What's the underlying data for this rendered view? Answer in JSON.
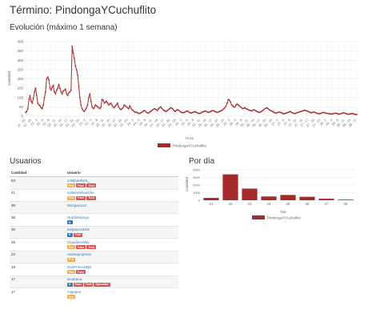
{
  "page": {
    "title": "Término: PindongaYCuchuflito",
    "evolution_title": "Evolución (máximo 1 semana)",
    "users_title": "Usuarios",
    "per_day_title": "Por día"
  },
  "colors": {
    "series": "#a52a2a",
    "badge_red": "#d9534f",
    "badge_orange": "#f0ad4e",
    "badge_blue": "#337ab7",
    "link": "#337ab7"
  },
  "users_table": {
    "headers": [
      "Cantidad",
      "Usuario"
    ],
    "rows": [
      {
        "count": "53",
        "user": "cristinorelyra_",
        "badges": [
          [
            "pro",
            "Pro"
          ],
          [
            "fake",
            "Fake"
          ],
          [
            "troll",
            "Troll"
          ]
        ]
      },
      {
        "count": "41",
        "user": "saltalorlehuelche",
        "badges": [
          [
            "pro",
            "Pro"
          ],
          [
            "fake",
            "Fake"
          ],
          [
            "troll",
            "Troll"
          ]
        ]
      },
      {
        "count": "39",
        "user": "MongaLisa1",
        "badges": []
      },
      {
        "count": "36",
        "user": "Humbertango",
        "badges": [
          [
            "k",
            "K"
          ]
        ]
      },
      {
        "count": "30",
        "user": "belgrano2019",
        "badges": [
          [
            "k",
            "K"
          ],
          [
            "troll",
            "Troll"
          ]
        ]
      },
      {
        "count": "25",
        "user": "ClauditosWay",
        "badges": [
          [
            "pro",
            "Pro"
          ],
          [
            "fake",
            "Fake"
          ],
          [
            "troll",
            "Troll"
          ]
        ]
      },
      {
        "count": "22",
        "user": "raulnegroperez",
        "badges": [
          [
            "pro",
            "Pro"
          ]
        ]
      },
      {
        "count": "19",
        "user": "GusPrimo1963",
        "badges": [
          [
            "pro",
            "Pro"
          ],
          [
            "fake",
            "Fake"
          ]
        ]
      },
      {
        "count": "17",
        "user": "lacabana",
        "badges": [
          [
            "k",
            "K"
          ],
          [
            "fake",
            "Fake"
          ],
          [
            "troll",
            "Troll"
          ],
          [
            "operador",
            "Operador"
          ]
        ]
      },
      {
        "count": "17",
        "user": "migepen",
        "badges": [
          [
            "pro",
            "Pro"
          ]
        ]
      }
    ]
  },
  "chart_data": [
    {
      "type": "line",
      "xlabel": "Hora",
      "ylabel": "Cantidad",
      "ylim": [
        0,
        400
      ],
      "yticks": [
        0,
        50,
        100,
        150,
        200,
        250,
        300,
        350,
        400
      ],
      "legend": "bottom",
      "grid": true,
      "x_ticks": [
        "21 - 20",
        "21 - 23",
        "22 - 2",
        "22 - 5",
        "22 - 8",
        "22 - 11",
        "22 - 14",
        "22 - 17",
        "22 - 20",
        "22 - 23",
        "23 - 2",
        "23 - 5",
        "23 - 8",
        "23 - 11",
        "23 - 14",
        "23 - 17",
        "23 - 20",
        "23 - 23",
        "24 - 2",
        "24 - 5",
        "24 - 8",
        "24 - 11",
        "24 - 14",
        "24 - 17",
        "24 - 20",
        "24 - 23",
        "25 - 2",
        "25 - 5",
        "25 - 8",
        "25 - 11",
        "25 - 14",
        "25 - 17",
        "25 - 20",
        "25 - 23",
        "26 - 2",
        "26 - 5",
        "26 - 8",
        "26 - 11",
        "26 - 14",
        "26 - 17",
        "26 - 20",
        "26 - 23",
        "27 - 2",
        "27 - 5",
        "27 - 8",
        "27 - 11",
        "27 - 14",
        "27 - 17",
        "27 - 20",
        "27 - 23",
        "28 - 2",
        "28 - 5",
        "28 - 8",
        "28 - 11",
        "28 - 14",
        "28 - 17"
      ],
      "series": [
        {
          "name": "PindongaYCuchuflito",
          "values": [
            20,
            25,
            40,
            90,
            110,
            80,
            70,
            95,
            130,
            150,
            110,
            70,
            60,
            55,
            45,
            40,
            60,
            100,
            130,
            200,
            210,
            195,
            150,
            140,
            155,
            165,
            130,
            120,
            140,
            150,
            170,
            150,
            130,
            120,
            135,
            140,
            145,
            120,
            110,
            125,
            130,
            140,
            375,
            340,
            310,
            270,
            250,
            220,
            160,
            100,
            60,
            40,
            30,
            25,
            35,
            45,
            60,
            100,
            120,
            80,
            50,
            40,
            45,
            60,
            55,
            50,
            45,
            40,
            50,
            90,
            85,
            70,
            75,
            80,
            70,
            60,
            65,
            70,
            60,
            50,
            45,
            55,
            60,
            70,
            50,
            40,
            35,
            40,
            45,
            60,
            55,
            50,
            45,
            40,
            55,
            45,
            35,
            30,
            25,
            20,
            22,
            18,
            15,
            14,
            18,
            20,
            25,
            30,
            28,
            20,
            18,
            15,
            22,
            25,
            30,
            35,
            40,
            38,
            35,
            30,
            40,
            45,
            50,
            42,
            35,
            30,
            28,
            25,
            30,
            35,
            40,
            45,
            42,
            38,
            30,
            25,
            30,
            35,
            32,
            28,
            22,
            20,
            18,
            20,
            22,
            25,
            28,
            24,
            20,
            16,
            18,
            20,
            22,
            24,
            20,
            18,
            15,
            14,
            16,
            20,
            22,
            25,
            28,
            26,
            22,
            20,
            22,
            25,
            28,
            30,
            28,
            25,
            22,
            20,
            22,
            25,
            28,
            30,
            35,
            40,
            45,
            55,
            70,
            90,
            85,
            75,
            60,
            55,
            50,
            48,
            60,
            65,
            60,
            55,
            50,
            45,
            40,
            42,
            45,
            40,
            38,
            35,
            32,
            30,
            28,
            30,
            35,
            32,
            28,
            25,
            22,
            20,
            22,
            25,
            30,
            35,
            40,
            42,
            45,
            40,
            35,
            30,
            28,
            25,
            20,
            18,
            15,
            18,
            20,
            22,
            20,
            18,
            15,
            12,
            14,
            16,
            18,
            20,
            22,
            25,
            20,
            18,
            15,
            14,
            16,
            18,
            20,
            22,
            24,
            26,
            28,
            30,
            32,
            30,
            28,
            25,
            22,
            20,
            18,
            20,
            22,
            20,
            18,
            16,
            14,
            12,
            14,
            16,
            18,
            20,
            18,
            16,
            15,
            14,
            13,
            12,
            11,
            12,
            14,
            15,
            16,
            14,
            12,
            10,
            12,
            14,
            16,
            18,
            16,
            14,
            12,
            10,
            11,
            12,
            13,
            14,
            12,
            10,
            9,
            8
          ]
        }
      ]
    },
    {
      "type": "bar",
      "xlabel": "Día",
      "ylabel": "Cantidad",
      "ylim": [
        0,
        4000
      ],
      "yticks": [
        0,
        1000,
        2000,
        3000,
        4000
      ],
      "categories": [
        "21",
        "22",
        "23",
        "24",
        "25",
        "26",
        "27",
        "28"
      ],
      "values": [
        300,
        3400,
        1530,
        490,
        700,
        450,
        200,
        80
      ],
      "legend": "bottom",
      "series_name": "PindongaYCuchuflito"
    }
  ]
}
